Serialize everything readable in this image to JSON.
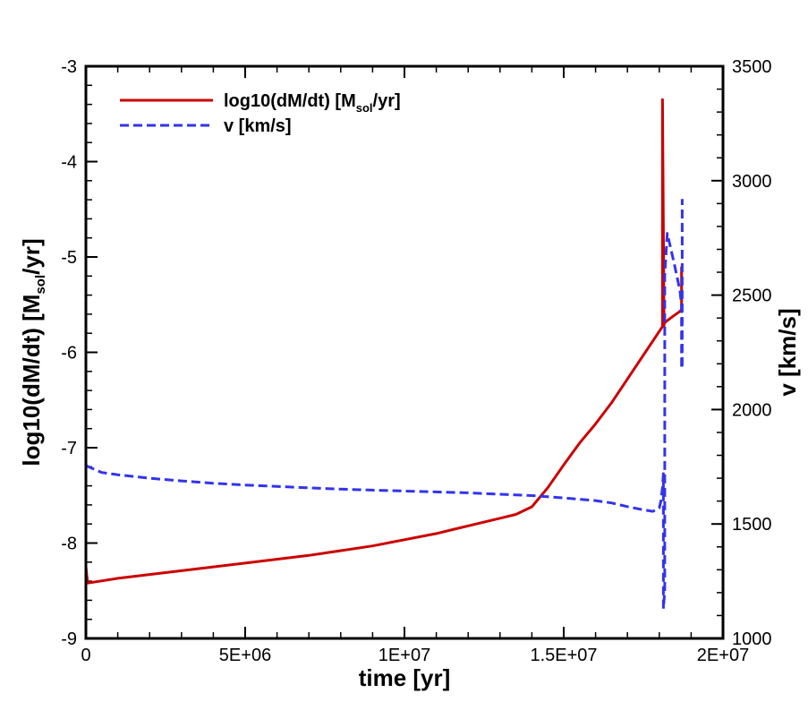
{
  "chart_data": {
    "type": "line",
    "title": "",
    "xlabel": "time [yr]",
    "ylabel_left": "log10(dM/dt) [Msol/yr]",
    "ylabel_right": "v [km/s]",
    "xlim": [
      0,
      20000000
    ],
    "ylim_left": [
      -9,
      -3
    ],
    "ylim_right": [
      1000,
      3500
    ],
    "x_ticks": [
      {
        "value": 0,
        "label": "0"
      },
      {
        "value": 5000000,
        "label": "5E+06"
      },
      {
        "value": 10000000,
        "label": "1E+07"
      },
      {
        "value": 15000000,
        "label": "1.5E+07"
      },
      {
        "value": 20000000,
        "label": "2E+07"
      }
    ],
    "y_left_ticks": [
      {
        "value": -3,
        "label": "-3"
      },
      {
        "value": -4,
        "label": "-4"
      },
      {
        "value": -5,
        "label": "-5"
      },
      {
        "value": -6,
        "label": "-6"
      },
      {
        "value": -7,
        "label": "-7"
      },
      {
        "value": -8,
        "label": "-8"
      },
      {
        "value": -9,
        "label": "-9"
      }
    ],
    "y_right_ticks": [
      {
        "value": 1000,
        "label": "1000"
      },
      {
        "value": 1500,
        "label": "1500"
      },
      {
        "value": 2000,
        "label": "2000"
      },
      {
        "value": 2500,
        "label": "2500"
      },
      {
        "value": 3000,
        "label": "3000"
      },
      {
        "value": 3500,
        "label": "3500"
      }
    ],
    "legend_position": "top-left",
    "series": [
      {
        "name": "log10(dM/dt) [Msol/yr]",
        "legend_main": "log10(dM/dt) [M",
        "legend_sub": "sol",
        "legend_tail": "/yr]",
        "axis": "left",
        "color": "#cc0000",
        "style": "solid",
        "x": [
          0,
          30000,
          60000,
          1000000,
          3000000,
          5000000,
          7000000,
          9000000,
          11000000,
          12000000,
          13000000,
          13500000,
          14000000,
          14500000,
          15000000,
          15500000,
          16000000,
          16500000,
          17000000,
          17500000,
          18000000,
          18100000,
          18100000,
          18150000,
          18150000,
          18200000,
          18400000,
          18650000,
          18700000,
          18700000
        ],
        "y": [
          -8.25,
          -8.35,
          -8.42,
          -8.37,
          -8.29,
          -8.21,
          -8.13,
          -8.03,
          -7.9,
          -7.82,
          -7.74,
          -7.7,
          -7.62,
          -7.42,
          -7.18,
          -6.95,
          -6.75,
          -6.53,
          -6.28,
          -6.03,
          -5.78,
          -5.73,
          -3.35,
          -5.72,
          -5.7,
          -5.68,
          -5.63,
          -5.57,
          -5.55,
          -5.1
        ]
      },
      {
        "name": "v [km/s]",
        "legend_main": "v [km/s]",
        "legend_sub": "",
        "legend_tail": "",
        "axis": "right",
        "color": "#3333ee",
        "style": "dashed",
        "x": [
          0,
          500000,
          1000000,
          2000000,
          3000000,
          4000000,
          5000000,
          6000000,
          7000000,
          8000000,
          9000000,
          10000000,
          11000000,
          12000000,
          13000000,
          14000000,
          15000000,
          16000000,
          16500000,
          17000000,
          17500000,
          17800000,
          18000000,
          18050000,
          18100000,
          18130000,
          18130000,
          18170000,
          18170000,
          18250000,
          18450000,
          18650000,
          18700000,
          18700000,
          18720000,
          18720000
        ],
        "y": [
          1755,
          1725,
          1715,
          1700,
          1688,
          1678,
          1670,
          1664,
          1658,
          1652,
          1648,
          1644,
          1640,
          1636,
          1630,
          1624,
          1614,
          1602,
          1592,
          1576,
          1562,
          1555,
          1570,
          1600,
          1660,
          1720,
          1130,
          1210,
          2590,
          2770,
          2650,
          2520,
          2450,
          2180,
          2180,
          2920
        ]
      }
    ]
  }
}
